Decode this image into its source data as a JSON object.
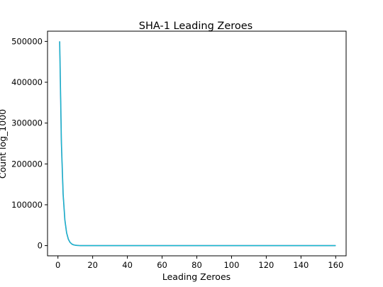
{
  "chart_data": {
    "type": "line",
    "title": "SHA-1 Leading Zeroes",
    "xlabel": "Leading Zeroes",
    "ylabel": "Count log_1000",
    "xlim": [
      -6,
      166
    ],
    "ylim": [
      -25000,
      525000
    ],
    "xticks": [
      0,
      20,
      40,
      60,
      80,
      100,
      120,
      140,
      160
    ],
    "yticks": [
      0,
      100000,
      200000,
      300000,
      400000,
      500000
    ],
    "grid": false,
    "legend": "none",
    "series": [
      {
        "color": "#1f77b4",
        "x": [
          1,
          2,
          3,
          4,
          5,
          6,
          7,
          8,
          9,
          10,
          11,
          12,
          13,
          14,
          15,
          20,
          30,
          40,
          60,
          80,
          100,
          120,
          140,
          160
        ],
        "y": [
          500000,
          250000,
          125000,
          62500,
          31250,
          15625,
          7812,
          3906,
          1953,
          977,
          488,
          244,
          122,
          61,
          31,
          1,
          0,
          0,
          0,
          0,
          0,
          0,
          0,
          0
        ]
      },
      {
        "color": "#17becf",
        "x": [
          1,
          2,
          3,
          4,
          5,
          6,
          7,
          8,
          9,
          10,
          11,
          12,
          13,
          14,
          15,
          20,
          30,
          40,
          60,
          80,
          100,
          120,
          140,
          160
        ],
        "y": [
          500000,
          250000,
          125000,
          62500,
          31250,
          15625,
          7812,
          3906,
          1953,
          977,
          488,
          244,
          122,
          61,
          31,
          1,
          0,
          0,
          0,
          0,
          0,
          0,
          0,
          0
        ]
      }
    ]
  }
}
